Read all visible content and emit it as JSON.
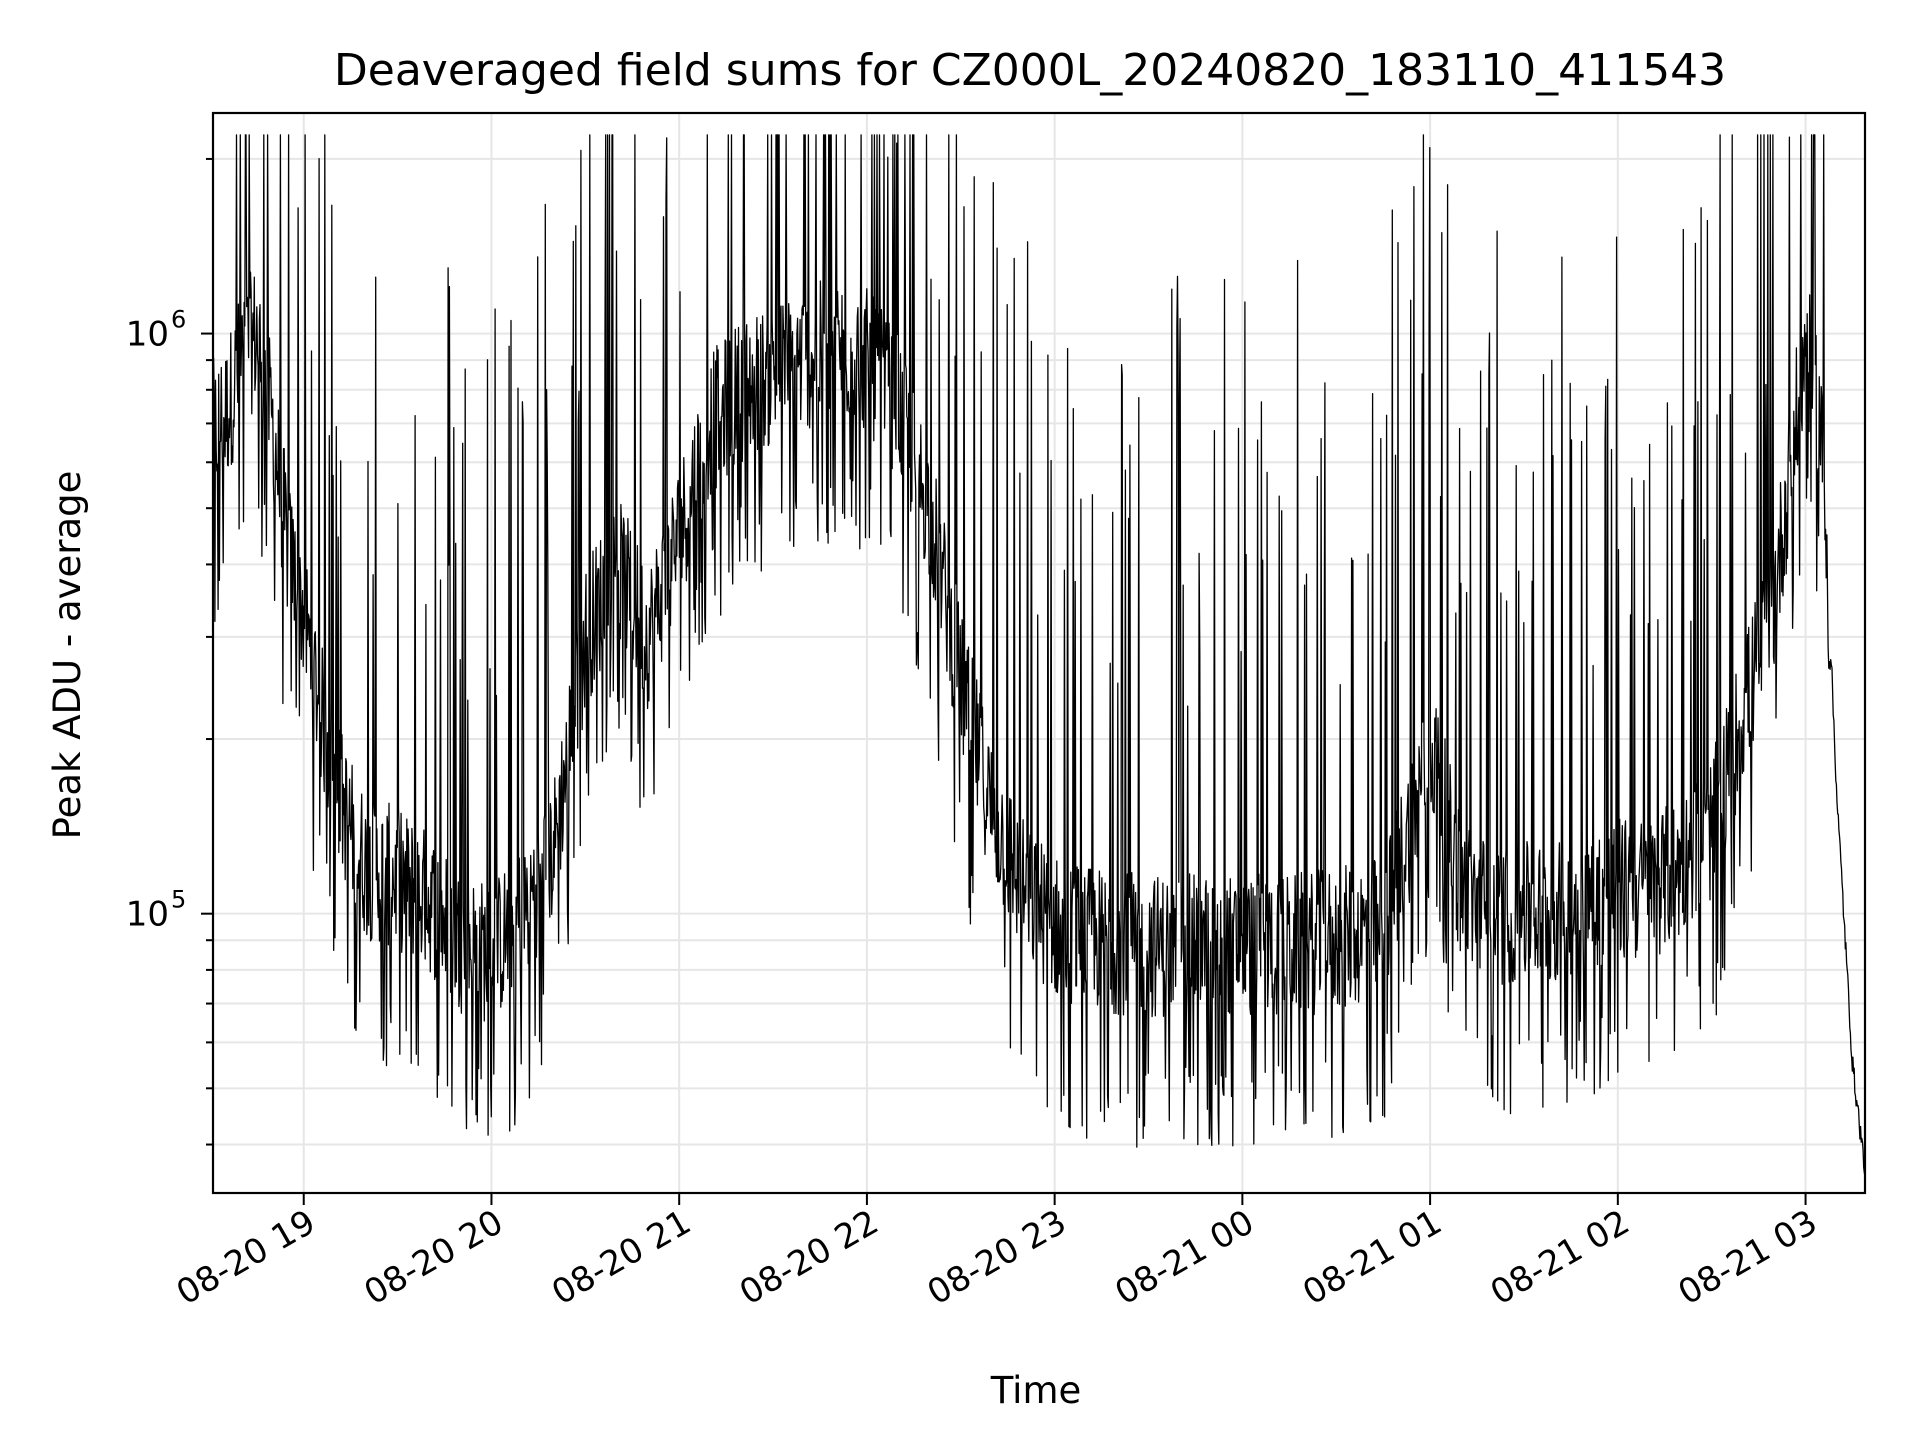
{
  "chart_data": {
    "type": "line",
    "title": "Deaveraged field sums for CZ000L_20240820_183110_411543",
    "xlabel": "Time",
    "ylabel": "Peak ADU - average",
    "x_scale": "time",
    "y_scale": "log",
    "xlim": [
      "2024-08-20 18:31",
      "2024-08-21 03:19"
    ],
    "ylim": [
      33000,
      2400000
    ],
    "x_ticks": [
      {
        "time": "2024-08-20 19:00",
        "label": "08-20 19"
      },
      {
        "time": "2024-08-20 20:00",
        "label": "08-20 20"
      },
      {
        "time": "2024-08-20 21:00",
        "label": "08-20 21"
      },
      {
        "time": "2024-08-20 22:00",
        "label": "08-20 22"
      },
      {
        "time": "2024-08-20 23:00",
        "label": "08-20 23"
      },
      {
        "time": "2024-08-21 00:00",
        "label": "08-21 00"
      },
      {
        "time": "2024-08-21 01:00",
        "label": "08-21 01"
      },
      {
        "time": "2024-08-21 02:00",
        "label": "08-21 02"
      },
      {
        "time": "2024-08-21 03:00",
        "label": "08-21 03"
      }
    ],
    "y_ticks": [
      {
        "value": 100000,
        "base": "10",
        "exp": "5"
      },
      {
        "value": 1000000,
        "base": "10",
        "exp": "6"
      }
    ],
    "grid": true,
    "series": [
      {
        "color": "#000000",
        "x": [
          "2024-08-20 18:31",
          "2024-08-20 18:35",
          "2024-08-20 18:40",
          "2024-08-20 18:45",
          "2024-08-20 18:50",
          "2024-08-20 18:55",
          "2024-08-20 19:00",
          "2024-08-20 19:05",
          "2024-08-20 19:10",
          "2024-08-20 19:15",
          "2024-08-20 19:20",
          "2024-08-20 19:30",
          "2024-08-20 19:40",
          "2024-08-20 19:50",
          "2024-08-20 20:00",
          "2024-08-20 20:10",
          "2024-08-20 20:20",
          "2024-08-20 20:30",
          "2024-08-20 20:40",
          "2024-08-20 20:50",
          "2024-08-20 21:00",
          "2024-08-20 21:10",
          "2024-08-20 21:20",
          "2024-08-20 21:30",
          "2024-08-20 21:40",
          "2024-08-20 21:50",
          "2024-08-20 22:00",
          "2024-08-20 22:10",
          "2024-08-20 22:20",
          "2024-08-20 22:30",
          "2024-08-20 22:40",
          "2024-08-20 22:50",
          "2024-08-20 23:00",
          "2024-08-20 23:15",
          "2024-08-20 23:30",
          "2024-08-20 23:45",
          "2024-08-21 00:00",
          "2024-08-21 00:15",
          "2024-08-21 00:30",
          "2024-08-21 00:45",
          "2024-08-21 00:55",
          "2024-08-21 01:00",
          "2024-08-21 01:10",
          "2024-08-21 01:20",
          "2024-08-21 01:30",
          "2024-08-21 01:40",
          "2024-08-21 01:50",
          "2024-08-21 02:00",
          "2024-08-21 02:10",
          "2024-08-21 02:20",
          "2024-08-21 02:30",
          "2024-08-21 02:40",
          "2024-08-21 02:50",
          "2024-08-21 03:00",
          "2024-08-21 03:05",
          "2024-08-21 03:10",
          "2024-08-21 03:15",
          "2024-08-21 03:19"
        ],
        "y": [
          680000,
          720000,
          900000,
          1000000,
          700000,
          420000,
          330000,
          230000,
          170000,
          140000,
          120000,
          115000,
          105000,
          90000,
          85000,
          100000,
          130000,
          300000,
          400000,
          300000,
          450000,
          700000,
          800000,
          850000,
          900000,
          950000,
          900000,
          750000,
          500000,
          250000,
          150000,
          110000,
          95000,
          90000,
          88000,
          88000,
          88000,
          88000,
          90000,
          95000,
          150000,
          200000,
          110000,
          100000,
          100000,
          100000,
          105000,
          110000,
          110000,
          120000,
          140000,
          220000,
          350000,
          950000,
          700000,
          160000,
          55000,
          36000
        ]
      }
    ]
  }
}
